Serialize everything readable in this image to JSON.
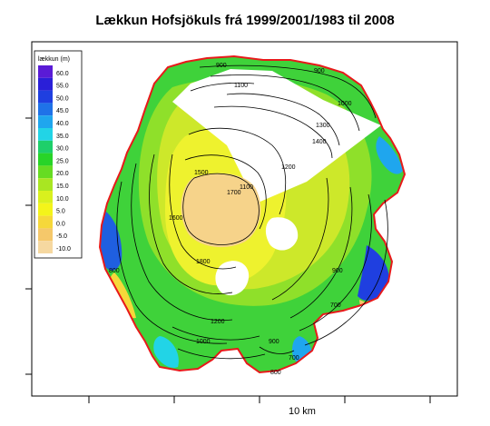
{
  "title": "Lækkun Hofsjökuls frá 1999/2001/1983 til 2008",
  "legend": {
    "title": "lækkun (m)",
    "items": [
      {
        "label": "60.0",
        "color": "#5a1bd6"
      },
      {
        "label": "55.0",
        "color": "#2a1fd8"
      },
      {
        "label": "50.0",
        "color": "#1f3fe0"
      },
      {
        "label": "45.0",
        "color": "#1f72e8"
      },
      {
        "label": "40.0",
        "color": "#1fa6ee"
      },
      {
        "label": "35.0",
        "color": "#22d4e6"
      },
      {
        "label": "30.0",
        "color": "#1ecf6a"
      },
      {
        "label": "25.0",
        "color": "#28d428"
      },
      {
        "label": "20.0",
        "color": "#66dc22"
      },
      {
        "label": "15.0",
        "color": "#a9e622"
      },
      {
        "label": "10.0",
        "color": "#d9f01e"
      },
      {
        "label": "5.0",
        "color": "#f4f41a"
      },
      {
        "label": "0.0",
        "color": "#f6d83a"
      },
      {
        "label": "-5.0",
        "color": "#f5c86a"
      },
      {
        "label": "-10.0",
        "color": "#f6d8a0"
      }
    ]
  },
  "contours": [
    {
      "label": "900",
      "kind": "elevation"
    },
    {
      "label": "900",
      "kind": "elevation"
    },
    {
      "label": "1100",
      "kind": "elevation"
    },
    {
      "label": "1000",
      "kind": "elevation"
    },
    {
      "label": "1300",
      "kind": "elevation"
    },
    {
      "label": "1400",
      "kind": "elevation"
    },
    {
      "label": "1500",
      "kind": "elevation"
    },
    {
      "label": "1700",
      "kind": "elevation"
    },
    {
      "label": "1600",
      "kind": "elevation"
    },
    {
      "label": "1800",
      "kind": "elevation"
    },
    {
      "label": "800",
      "kind": "elevation"
    },
    {
      "label": "900",
      "kind": "elevation"
    },
    {
      "label": "700",
      "kind": "elevation"
    },
    {
      "label": "1200",
      "kind": "elevation"
    },
    {
      "label": "1000",
      "kind": "elevation"
    },
    {
      "label": "900",
      "kind": "elevation"
    },
    {
      "label": "800",
      "kind": "elevation"
    },
    {
      "label": "700",
      "kind": "elevation"
    },
    {
      "label": "1100",
      "kind": "elevation"
    },
    {
      "label": "1200",
      "kind": "elevation"
    }
  ],
  "scale": {
    "label": "10 km"
  }
}
